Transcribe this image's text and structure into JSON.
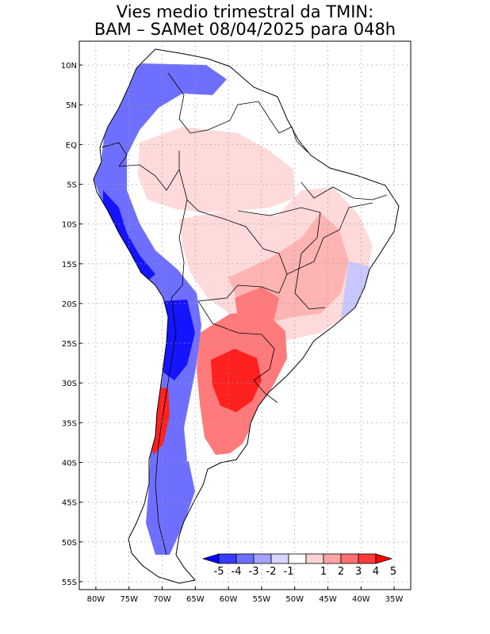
{
  "title": {
    "line1": "Vies medio trimestral da TMIN:",
    "line2": "BAM – SAMet 08/04/2025  para 048h"
  },
  "lat_labels": [
    "10N",
    "5N",
    "EQ",
    "5S",
    "10S",
    "15S",
    "20S",
    "25S",
    "30S",
    "35S",
    "40S",
    "45S",
    "50S",
    "55S"
  ],
  "lon_labels": [
    "80W",
    "75W",
    "70W",
    "65W",
    "60W",
    "55W",
    "50W",
    "45W",
    "40W",
    "35W"
  ],
  "lat_values": [
    10,
    5,
    0,
    -5,
    -10,
    -15,
    -20,
    -25,
    -30,
    -35,
    -40,
    -45,
    -50,
    -55
  ],
  "lon_values": [
    -80,
    -75,
    -70,
    -65,
    -60,
    -55,
    -50,
    -45,
    -40,
    -35
  ],
  "extent": {
    "lon_min": -82.5,
    "lon_max": -32.5,
    "lat_min": -56,
    "lat_max": 13
  },
  "colorbar": {
    "labels": [
      "-5",
      "-4",
      "-3",
      "-2",
      "-1",
      "1",
      "2",
      "3",
      "4",
      "5"
    ],
    "colors": [
      "#0000ff",
      "#3a3aff",
      "#6f6fff",
      "#a3a3ff",
      "#d6d6ff",
      "#ffffff",
      "#ffd3d3",
      "#ffa3a3",
      "#ff6f6f",
      "#ff3a3a",
      "#ff0000"
    ]
  },
  "palette": {
    "strong_blue": "#1414ff",
    "mid_blue": "#6f6fff",
    "light_blue": "#c8c8ff",
    "pale_red": "#ffdada",
    "light_red": "#ffb4b4",
    "mid_red": "#ff7a7a",
    "strong_red": "#ff2020",
    "grid": "#9a9a9a"
  }
}
